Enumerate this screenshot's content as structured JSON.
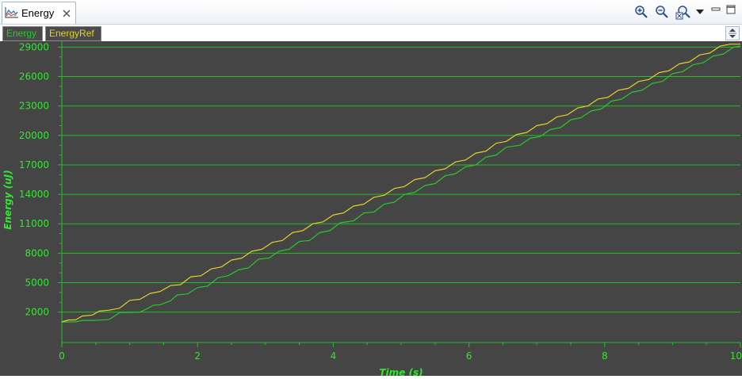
{
  "view": {
    "tab_label": "Energy",
    "icons": {
      "tab": "line-chart-icon",
      "close": "close-icon",
      "zoom_in": "zoom-in-icon",
      "zoom_out": "zoom-out-icon",
      "zoom_reset": "zoom-reset-icon",
      "menu": "dropdown-icon",
      "minimize": "minimize-icon",
      "maximize": "maximize-icon"
    }
  },
  "series_tabs": [
    {
      "label": "Energy",
      "color": "#27c82a"
    },
    {
      "label": "EnergyRef",
      "color": "#e2d128"
    }
  ],
  "chart_data": {
    "type": "line",
    "xlabel": "Time (s)",
    "ylabel": "Energy (uJ)",
    "xlim": [
      0,
      10
    ],
    "ylim": [
      -1100,
      29600
    ],
    "x_ticks": [
      0,
      2,
      4,
      6,
      8,
      10
    ],
    "y_ticks": [
      2000,
      5000,
      8000,
      11000,
      14000,
      17000,
      20000,
      23000,
      26000,
      29000
    ],
    "grid": "horizontal",
    "colors": {
      "background": "#454545",
      "grid": "#22c022",
      "axis_text": "#2ee82e"
    },
    "series": [
      {
        "name": "Energy",
        "color": "#27c82a",
        "x": [
          0,
          0.2,
          0.3,
          0.45,
          0.6,
          0.7,
          0.85,
          0.95,
          1.15,
          1.2,
          1.35,
          1.45,
          1.6,
          1.7,
          1.85,
          2.0,
          2.15,
          2.3,
          2.45,
          2.6,
          2.75,
          2.9,
          3.05,
          3.2,
          3.35,
          3.5,
          3.65,
          3.8,
          3.95,
          4.1,
          4.3,
          4.45,
          4.6,
          4.75,
          4.9,
          5.05,
          5.2,
          5.35,
          5.5,
          5.65,
          5.8,
          5.95,
          6.1,
          6.25,
          6.4,
          6.55,
          6.75,
          6.9,
          7.05,
          7.2,
          7.35,
          7.5,
          7.65,
          7.8,
          7.95,
          8.1,
          8.25,
          8.4,
          8.55,
          8.7,
          8.85,
          9.0,
          9.15,
          9.3,
          9.45,
          9.6,
          9.75,
          9.9,
          10.0
        ],
        "y": [
          1000,
          1000,
          1150,
          1150,
          1200,
          1250,
          1950,
          1950,
          2000,
          2150,
          2700,
          2750,
          3150,
          3750,
          3850,
          4500,
          4650,
          5500,
          5700,
          6300,
          6500,
          7400,
          7500,
          8200,
          8400,
          9200,
          9300,
          10100,
          10300,
          11100,
          11300,
          12100,
          12200,
          13000,
          13200,
          14000,
          14200,
          14900,
          15100,
          15900,
          16100,
          16800,
          17000,
          17800,
          18000,
          18800,
          19000,
          19700,
          19900,
          20600,
          20800,
          21600,
          21800,
          22500,
          22700,
          23500,
          23700,
          24400,
          24600,
          25300,
          25500,
          26300,
          26500,
          27200,
          27400,
          28100,
          28300,
          29000,
          29100
        ]
      },
      {
        "name": "EnergyRef",
        "color": "#e2d128",
        "x": [
          0,
          0.1,
          0.2,
          0.3,
          0.45,
          0.55,
          0.7,
          0.85,
          1.0,
          1.15,
          1.3,
          1.45,
          1.6,
          1.75,
          1.9,
          2.05,
          2.2,
          2.35,
          2.5,
          2.65,
          2.8,
          2.95,
          3.1,
          3.25,
          3.4,
          3.55,
          3.7,
          3.85,
          4.0,
          4.15,
          4.3,
          4.45,
          4.6,
          4.75,
          4.9,
          5.05,
          5.2,
          5.35,
          5.5,
          5.65,
          5.8,
          5.95,
          6.1,
          6.25,
          6.4,
          6.55,
          6.7,
          6.85,
          7.0,
          7.15,
          7.3,
          7.45,
          7.6,
          7.75,
          7.9,
          8.05,
          8.2,
          8.35,
          8.5,
          8.65,
          8.8,
          8.95,
          9.1,
          9.25,
          9.4,
          9.55,
          9.7,
          9.85,
          10.0
        ],
        "y": [
          1000,
          1200,
          1200,
          1600,
          1700,
          2100,
          2200,
          2400,
          3200,
          3300,
          3900,
          4100,
          4700,
          4800,
          5600,
          5700,
          6400,
          6600,
          7300,
          7500,
          8200,
          8400,
          9100,
          9300,
          10100,
          10300,
          11000,
          11200,
          11900,
          12100,
          12800,
          13000,
          13700,
          13900,
          14600,
          14800,
          15500,
          15700,
          16400,
          16600,
          17300,
          17500,
          18200,
          18400,
          19200,
          19400,
          20100,
          20300,
          21000,
          21200,
          21900,
          22100,
          22800,
          23000,
          23700,
          23900,
          24600,
          24800,
          25500,
          25700,
          26400,
          26600,
          27300,
          27500,
          28200,
          28400,
          29100,
          29300,
          29300
        ]
      }
    ]
  }
}
